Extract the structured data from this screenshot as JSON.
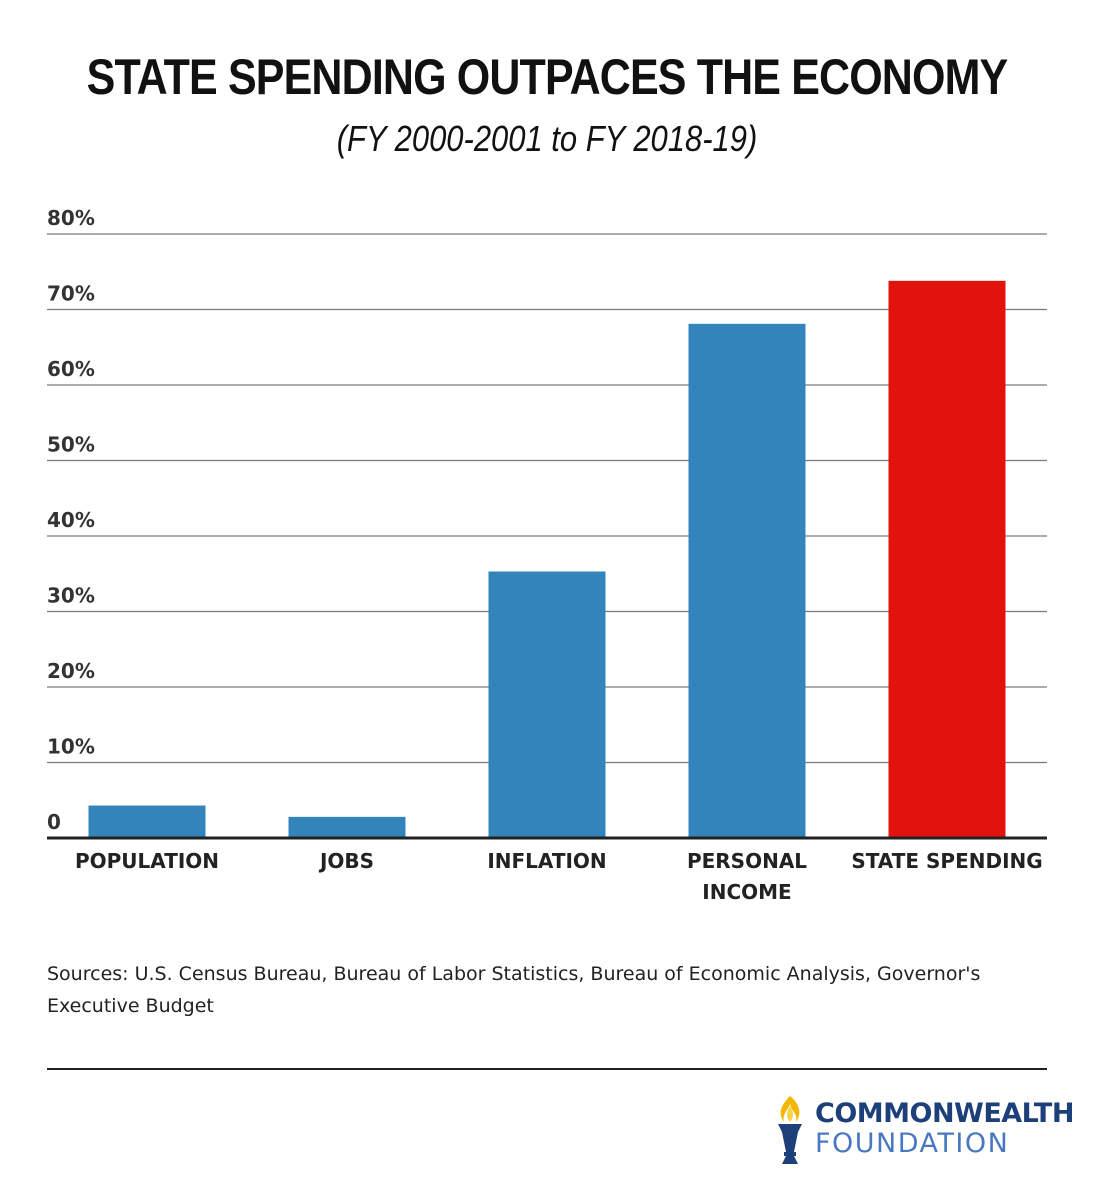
{
  "title": "STATE SPENDING OUTPACES THE ECONOMY",
  "subtitle": "(FY 2000-2001 to FY 2018-19)",
  "sources": "Sources: U.S. Census Bureau, Bureau of Labor Statistics, Bureau of Economic Analysis, Governor's Executive Budget",
  "logo": {
    "line1": "COMMONWEALTH",
    "line2": "FOUNDATION"
  },
  "colors": {
    "bar": "#3384bb",
    "highlight": "#e2130c",
    "logo_dark": "#1d3f7a",
    "logo_light": "#4a78c0"
  },
  "chart_data": {
    "type": "bar",
    "categories": [
      [
        "POPULATION"
      ],
      [
        "JOBS"
      ],
      [
        "INFLATION"
      ],
      [
        "PERSONAL",
        "INCOME"
      ],
      [
        "STATE SPENDING"
      ]
    ],
    "values": [
      4.3,
      2.8,
      35.3,
      68.1,
      73.8
    ],
    "highlight_index": 4,
    "ylim": [
      0,
      80
    ],
    "yticks": [
      {
        "value": 0,
        "label": "0"
      },
      {
        "value": 10,
        "label": "10%"
      },
      {
        "value": 20,
        "label": "20%"
      },
      {
        "value": 30,
        "label": "30%"
      },
      {
        "value": 40,
        "label": "40%"
      },
      {
        "value": 50,
        "label": "50%"
      },
      {
        "value": 60,
        "label": "60%"
      },
      {
        "value": 70,
        "label": "70%"
      },
      {
        "value": 80,
        "label": "80%"
      }
    ],
    "grid": true,
    "legend": "none"
  }
}
